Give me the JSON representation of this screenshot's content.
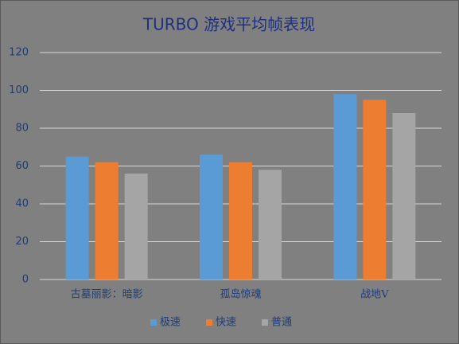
{
  "chart_data": {
    "type": "bar",
    "title": "TURBO 游戏平均帧表现",
    "categories": [
      "古墓丽影：暗影",
      "孤岛惊魂",
      "战地V"
    ],
    "series": [
      {
        "name": "极速",
        "color": "#5b9bd5",
        "values": [
          65,
          66,
          98
        ]
      },
      {
        "name": "快速",
        "color": "#ed7d31",
        "values": [
          62,
          62,
          95
        ]
      },
      {
        "name": "普通",
        "color": "#a5a5a5",
        "values": [
          56,
          58,
          88
        ]
      }
    ],
    "ylim": [
      0,
      120
    ],
    "yticks": [
      0,
      20,
      40,
      60,
      80,
      100,
      120
    ],
    "grid": true,
    "legend": "bottom"
  }
}
